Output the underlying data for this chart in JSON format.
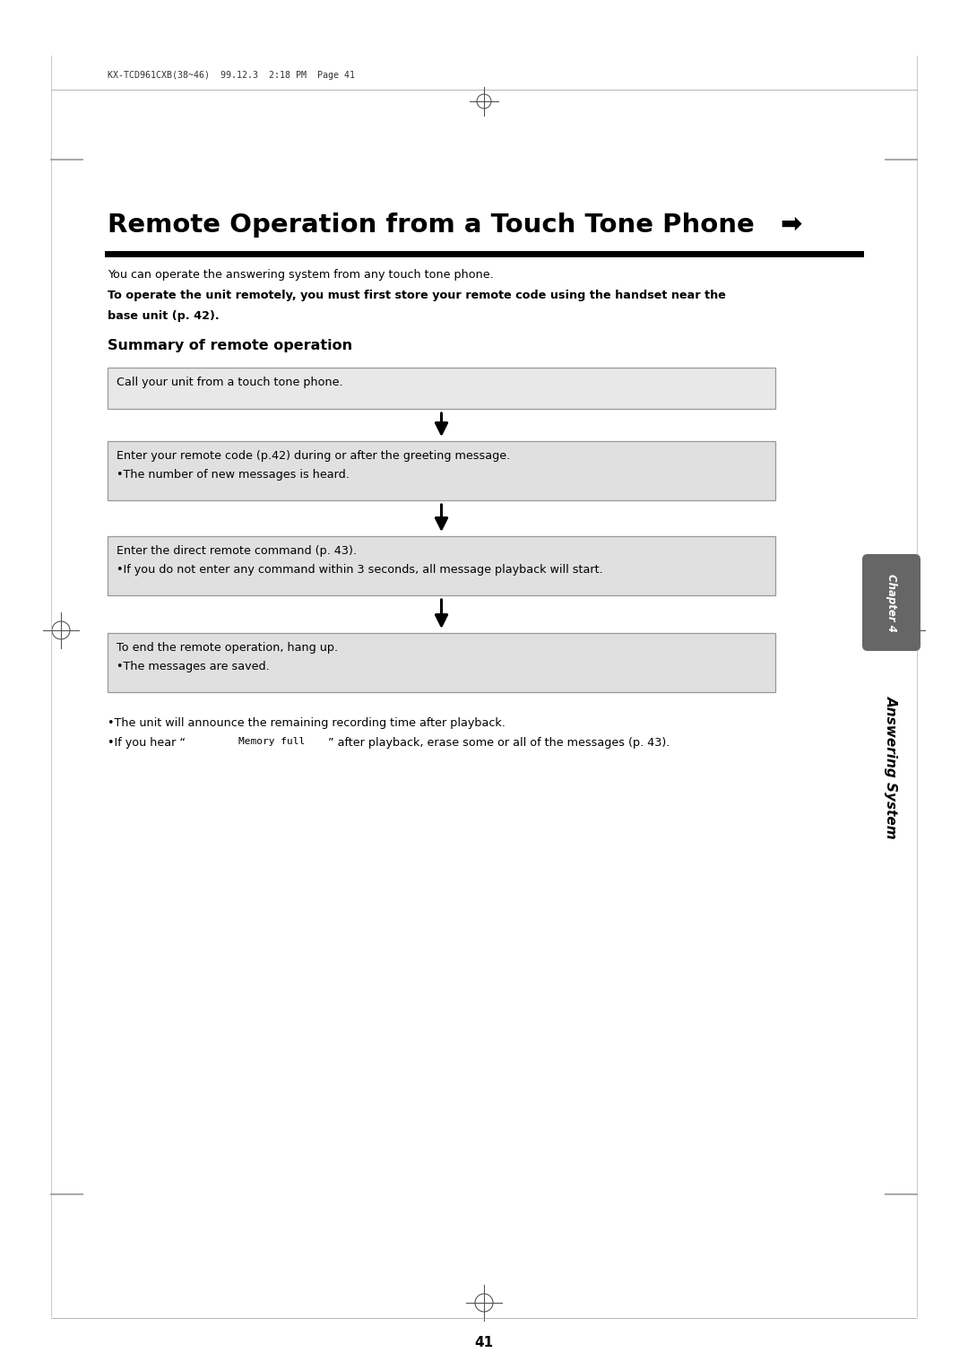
{
  "page_bg": "#ffffff",
  "header_text": "KX-TCD961CXB(38~46)  99.12.3  2:18 PM  Page 41",
  "title_text": "Remote Operation from a Touch Tone Phone ",
  "title_arrow": "➡",
  "intro_line1": "You can operate the answering system from any touch tone phone.",
  "intro_line2_bold": "To operate the unit remotely, you must first store your remote code using the handset near the",
  "intro_line3_bold": "base unit (p. 42).",
  "section_title": "Summary of remote operation",
  "box1_line1": "Call your unit from a touch tone phone.",
  "box2_line1": "Enter your remote code (p.42) during or after the greeting message.",
  "box2_line2": "•The number of new messages is heard.",
  "box3_line1": "Enter the direct remote command (p. 43).",
  "box3_line2": "•If you do not enter any command within 3 seconds, all message playback will start.",
  "box4_line1": "To end the remote operation, hang up.",
  "box4_line2": "•The messages are saved.",
  "footer1": "•The unit will announce the remaining recording time after playback.",
  "footer2_pre": "•If you hear “",
  "footer2_mono": "Memory full",
  "footer2_post": "” after playback, erase some or all of the messages (p. 43).",
  "chapter_tab_text": "Chapter 4",
  "answering_system_text": "Answering System",
  "page_number": "41",
  "box_bg_light": "#e8e8e8",
  "box_bg_mid": "#e0e0e0",
  "box_border": "#999999",
  "tab_bg": "#666666",
  "tab_text_color": "#ffffff",
  "crosshair_color": "#555555",
  "border_line_color": "#cccccc",
  "dash_color": "#aaaaaa"
}
